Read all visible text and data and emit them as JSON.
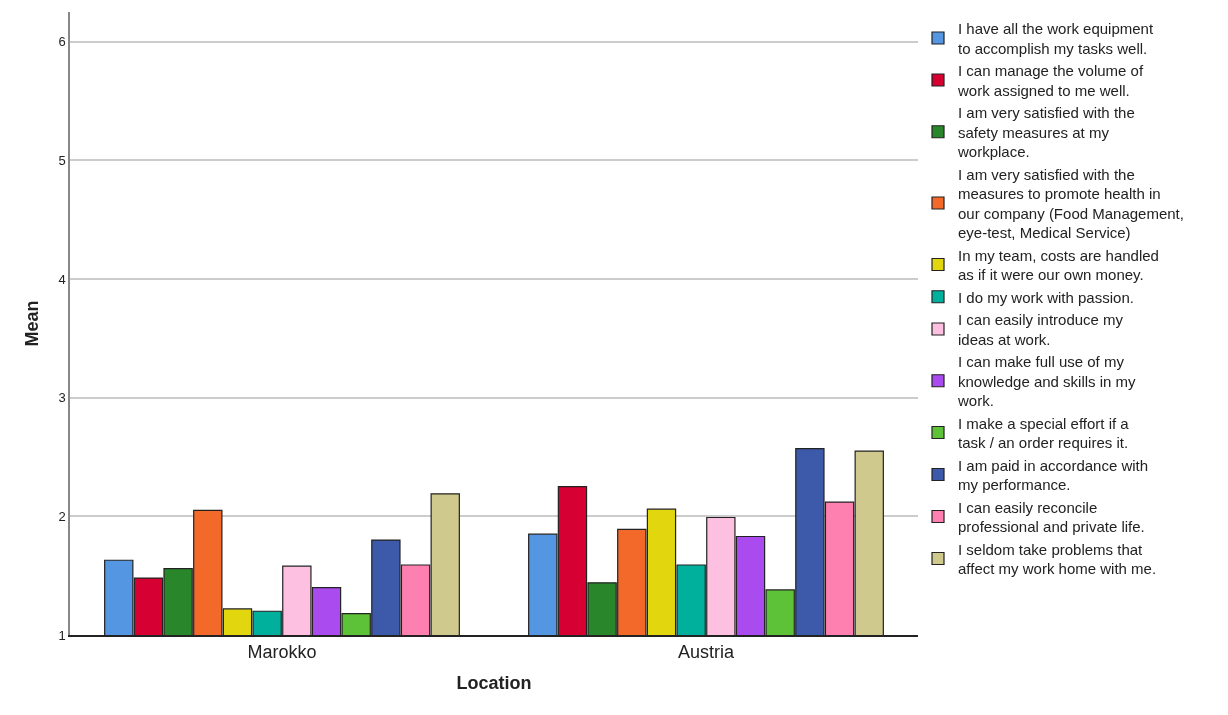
{
  "chart_data": {
    "type": "bar",
    "xlabel": "Location",
    "ylabel": "Mean",
    "categories": [
      "Marokko",
      "Austria"
    ],
    "ylim": [
      1,
      6.25
    ],
    "yticks": [
      1,
      2,
      3,
      4,
      5,
      6
    ],
    "grid": "y",
    "legend": "right",
    "series": [
      {
        "name": "I have all the work equipment to accomplish my tasks well.",
        "color": "#5596e3",
        "values": [
          1.63,
          1.85
        ]
      },
      {
        "name": "I can manage the volume of work assigned to me well.",
        "color": "#d60032",
        "values": [
          1.48,
          2.25
        ]
      },
      {
        "name": "I am very satisfied with the safety measures at my workplace.",
        "color": "#2a862a",
        "values": [
          1.56,
          1.44
        ]
      },
      {
        "name": "I am very satisfied with the measures to promote health in our company (Food Management, eye-test, Medical Service)",
        "color": "#f2692a",
        "values": [
          2.05,
          1.89
        ]
      },
      {
        "name": "In my team, costs are handled as if it were our own money.",
        "color": "#e2d70e",
        "values": [
          1.22,
          2.06
        ]
      },
      {
        "name": "I do my work with passion.",
        "color": "#00b09c",
        "values": [
          1.2,
          1.59
        ]
      },
      {
        "name": "I can easily introduce my ideas at work.",
        "color": "#fec0e0",
        "values": [
          1.58,
          1.99
        ]
      },
      {
        "name": "I can make full use of my knowledge and skills in my work.",
        "color": "#a94bef",
        "values": [
          1.4,
          1.83
        ]
      },
      {
        "name": "I make a special effort if a task / an order requires it.",
        "color": "#5ec238",
        "values": [
          1.18,
          1.38
        ]
      },
      {
        "name": "I am paid in accordance with my performance.",
        "color": "#3c5aa9",
        "values": [
          1.8,
          2.57
        ]
      },
      {
        "name": "I can easily reconcile professional and private life.",
        "color": "#fe80b0",
        "values": [
          1.59,
          2.12
        ]
      },
      {
        "name": "I seldom take problems that affect my work home with me.",
        "color": "#d0c98d",
        "values": [
          2.19,
          2.55
        ]
      }
    ]
  }
}
